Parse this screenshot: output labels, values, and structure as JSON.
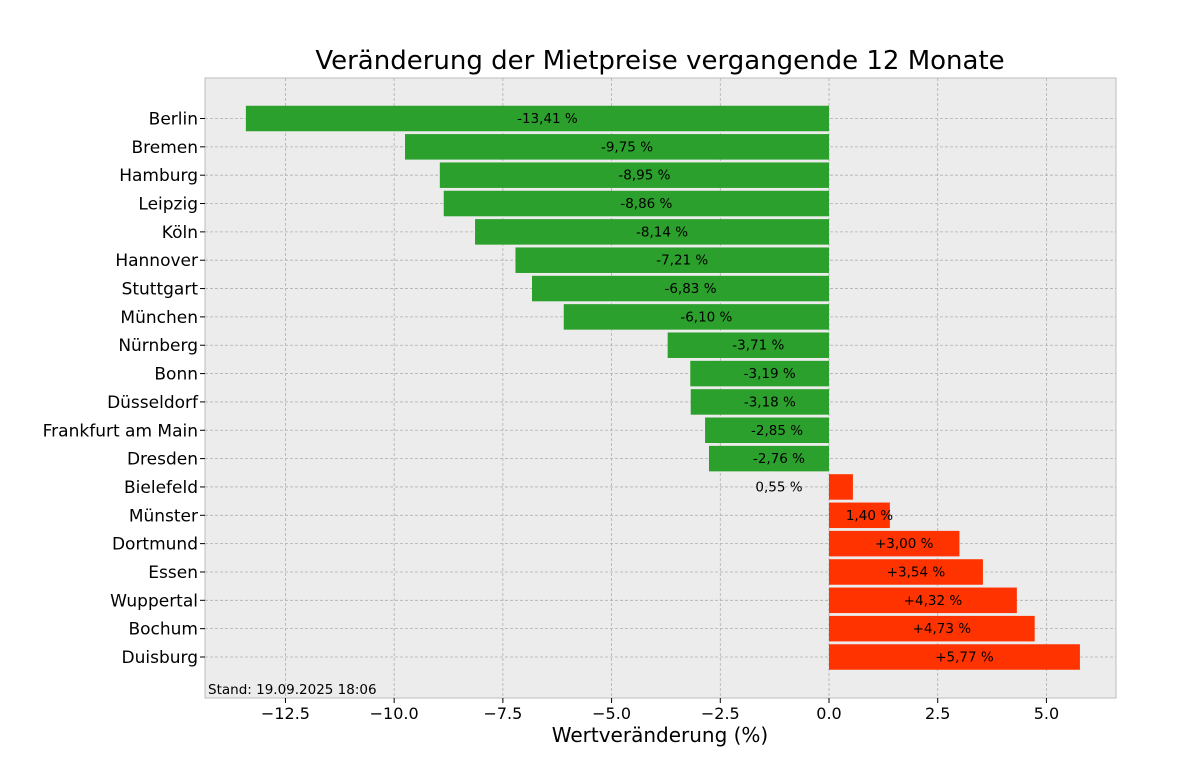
{
  "chart_data": {
    "type": "bar",
    "orientation": "horizontal",
    "title": "Veränderung der Mietpreise vergangende 12 Monate",
    "xlabel": "Wertveränderung (%)",
    "ylabel": "",
    "xlim": [
      -14.35,
      6.6
    ],
    "xticks": [
      -12.5,
      -10.0,
      -7.5,
      -5.0,
      -2.5,
      0.0,
      2.5,
      5.0
    ],
    "xtick_labels": [
      "−12.5",
      "−10.0",
      "−7.5",
      "−5.0",
      "−2.5",
      "0.0",
      "2.5",
      "5.0"
    ],
    "grid": true,
    "categories": [
      "Berlin",
      "Bremen",
      "Hamburg",
      "Leipzig",
      "Köln",
      "Hannover",
      "Stuttgart",
      "München",
      "Nürnberg",
      "Bonn",
      "Düsseldorf",
      "Frankfurt am Main",
      "Dresden",
      "Bielefeld",
      "Münster",
      "Dortmund",
      "Essen",
      "Wuppertal",
      "Bochum",
      "Duisburg"
    ],
    "values": [
      -13.41,
      -9.75,
      -8.95,
      -8.86,
      -8.14,
      -7.21,
      -6.83,
      -6.1,
      -3.71,
      -3.19,
      -3.18,
      -2.85,
      -2.76,
      0.55,
      1.4,
      3.0,
      3.54,
      4.32,
      4.73,
      5.77
    ],
    "data_labels": [
      "-13,41 %",
      "-9,75 %",
      "-8,95 %",
      "-8,86 %",
      "-8,14 %",
      "-7,21 %",
      "-6,83 %",
      "-6,10 %",
      "-3,71 %",
      "-3,19 %",
      "-3,18 %",
      "-2,85 %",
      "-2,76 %",
      "0,55 %",
      "1,40 %",
      "+3,00 %",
      "+3,54 %",
      "+4,32 %",
      "+4,73 %",
      "+5,77 %"
    ],
    "colors": {
      "negative": "#2ca02c",
      "positive": "#ff3300",
      "background": "#ececec"
    },
    "annotation": "Stand: 19.09.2025 18:06"
  }
}
